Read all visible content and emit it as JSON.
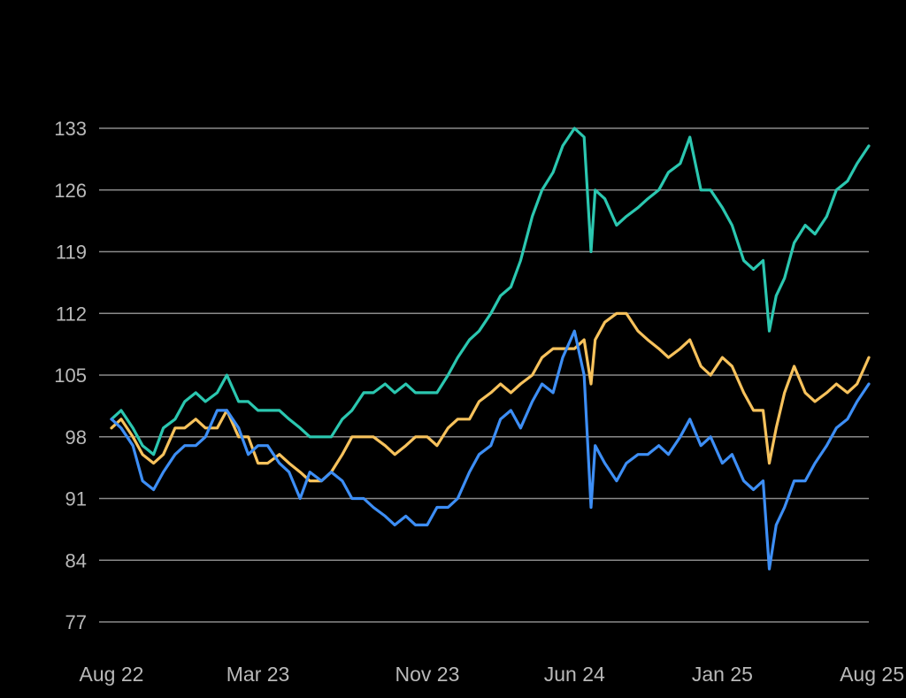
{
  "chart_data": {
    "type": "line",
    "title": "",
    "xlabel": "",
    "ylabel": "",
    "x_range": [
      "2022-08",
      "2025-08"
    ],
    "x_ticks": [
      {
        "label": "Aug 22",
        "date": "2022-08"
      },
      {
        "label": "Mar 23",
        "date": "2023-03"
      },
      {
        "label": "Nov 23",
        "date": "2023-11"
      },
      {
        "label": "Jun 24",
        "date": "2024-06"
      },
      {
        "label": "Jan 25",
        "date": "2025-01"
      },
      {
        "label": "Aug 25",
        "date": "2025-08"
      }
    ],
    "y_ticks": [
      77,
      84,
      91,
      98,
      105,
      112,
      119,
      126,
      133
    ],
    "ylim": [
      77,
      133
    ],
    "grid": "horizontal",
    "legend": "none",
    "series": [
      {
        "color": "#2bc7b0",
        "points": [
          [
            "2022-08",
            100
          ],
          [
            "2022-08-15",
            101
          ],
          [
            "2022-09",
            99
          ],
          [
            "2022-09-15",
            97
          ],
          [
            "2022-10",
            96
          ],
          [
            "2022-10-15",
            99
          ],
          [
            "2022-11",
            100
          ],
          [
            "2022-11-15",
            102
          ],
          [
            "2022-12",
            103
          ],
          [
            "2022-12-15",
            102
          ],
          [
            "2023-01",
            103
          ],
          [
            "2023-01-15",
            105
          ],
          [
            "2023-02",
            102
          ],
          [
            "2023-02-15",
            102
          ],
          [
            "2023-03",
            101
          ],
          [
            "2023-03-15",
            101
          ],
          [
            "2023-04",
            101
          ],
          [
            "2023-04-15",
            100
          ],
          [
            "2023-05",
            99
          ],
          [
            "2023-05-15",
            98
          ],
          [
            "2023-06",
            98
          ],
          [
            "2023-06-15",
            98
          ],
          [
            "2023-07",
            100
          ],
          [
            "2023-07-15",
            101
          ],
          [
            "2023-08",
            103
          ],
          [
            "2023-08-15",
            103
          ],
          [
            "2023-09",
            104
          ],
          [
            "2023-09-15",
            103
          ],
          [
            "2023-10",
            104
          ],
          [
            "2023-10-15",
            103
          ],
          [
            "2023-11",
            103
          ],
          [
            "2023-11-15",
            103
          ],
          [
            "2023-12",
            105
          ],
          [
            "2023-12-15",
            107
          ],
          [
            "2024-01",
            109
          ],
          [
            "2024-01-15",
            110
          ],
          [
            "2024-02",
            112
          ],
          [
            "2024-02-15",
            114
          ],
          [
            "2024-03",
            115
          ],
          [
            "2024-03-15",
            118
          ],
          [
            "2024-04",
            123
          ],
          [
            "2024-04-15",
            126
          ],
          [
            "2024-05",
            128
          ],
          [
            "2024-05-15",
            131
          ],
          [
            "2024-06",
            133
          ],
          [
            "2024-06-15",
            132
          ],
          [
            "2024-06-25",
            119
          ],
          [
            "2024-07",
            126
          ],
          [
            "2024-07-15",
            125
          ],
          [
            "2024-08",
            122
          ],
          [
            "2024-08-15",
            123
          ],
          [
            "2024-09",
            124
          ],
          [
            "2024-09-15",
            125
          ],
          [
            "2024-10",
            126
          ],
          [
            "2024-10-15",
            128
          ],
          [
            "2024-11",
            129
          ],
          [
            "2024-11-15",
            132
          ],
          [
            "2024-12",
            126
          ],
          [
            "2024-12-15",
            126
          ],
          [
            "2025-01",
            124
          ],
          [
            "2025-01-15",
            122
          ],
          [
            "2025-02",
            118
          ],
          [
            "2025-02-15",
            117
          ],
          [
            "2025-03",
            118
          ],
          [
            "2025-03-10",
            110
          ],
          [
            "2025-03-20",
            114
          ],
          [
            "2025-04",
            116
          ],
          [
            "2025-04-15",
            120
          ],
          [
            "2025-05",
            122
          ],
          [
            "2025-05-15",
            121
          ],
          [
            "2025-06",
            123
          ],
          [
            "2025-06-15",
            126
          ],
          [
            "2025-07",
            127
          ],
          [
            "2025-07-15",
            129
          ],
          [
            "2025-08",
            131
          ]
        ]
      },
      {
        "color": "#f7c25c",
        "points": [
          [
            "2022-08",
            99
          ],
          [
            "2022-08-15",
            100
          ],
          [
            "2022-09",
            98
          ],
          [
            "2022-09-15",
            96
          ],
          [
            "2022-10",
            95
          ],
          [
            "2022-10-15",
            96
          ],
          [
            "2022-11",
            99
          ],
          [
            "2022-11-15",
            99
          ],
          [
            "2022-12",
            100
          ],
          [
            "2022-12-15",
            99
          ],
          [
            "2023-01",
            99
          ],
          [
            "2023-01-15",
            101
          ],
          [
            "2023-02",
            98
          ],
          [
            "2023-02-15",
            98
          ],
          [
            "2023-03",
            95
          ],
          [
            "2023-03-15",
            95
          ],
          [
            "2023-04",
            96
          ],
          [
            "2023-04-15",
            95
          ],
          [
            "2023-05",
            94
          ],
          [
            "2023-05-15",
            93
          ],
          [
            "2023-06",
            93
          ],
          [
            "2023-06-15",
            94
          ],
          [
            "2023-07",
            96
          ],
          [
            "2023-07-15",
            98
          ],
          [
            "2023-08",
            98
          ],
          [
            "2023-08-15",
            98
          ],
          [
            "2023-09",
            97
          ],
          [
            "2023-09-15",
            96
          ],
          [
            "2023-10",
            97
          ],
          [
            "2023-10-15",
            98
          ],
          [
            "2023-11",
            98
          ],
          [
            "2023-11-15",
            97
          ],
          [
            "2023-12",
            99
          ],
          [
            "2023-12-15",
            100
          ],
          [
            "2024-01",
            100
          ],
          [
            "2024-01-15",
            102
          ],
          [
            "2024-02",
            103
          ],
          [
            "2024-02-15",
            104
          ],
          [
            "2024-03",
            103
          ],
          [
            "2024-03-15",
            104
          ],
          [
            "2024-04",
            105
          ],
          [
            "2024-04-15",
            107
          ],
          [
            "2024-05",
            108
          ],
          [
            "2024-05-15",
            108
          ],
          [
            "2024-06",
            108
          ],
          [
            "2024-06-15",
            109
          ],
          [
            "2024-06-25",
            104
          ],
          [
            "2024-07",
            109
          ],
          [
            "2024-07-15",
            111
          ],
          [
            "2024-08",
            112
          ],
          [
            "2024-08-15",
            112
          ],
          [
            "2024-09",
            110
          ],
          [
            "2024-09-15",
            109
          ],
          [
            "2024-10",
            108
          ],
          [
            "2024-10-15",
            107
          ],
          [
            "2024-11",
            108
          ],
          [
            "2024-11-15",
            109
          ],
          [
            "2024-12",
            106
          ],
          [
            "2024-12-15",
            105
          ],
          [
            "2025-01",
            107
          ],
          [
            "2025-01-15",
            106
          ],
          [
            "2025-02",
            103
          ],
          [
            "2025-02-15",
            101
          ],
          [
            "2025-03",
            101
          ],
          [
            "2025-03-10",
            95
          ],
          [
            "2025-03-20",
            99
          ],
          [
            "2025-04",
            103
          ],
          [
            "2025-04-15",
            106
          ],
          [
            "2025-05",
            103
          ],
          [
            "2025-05-15",
            102
          ],
          [
            "2025-06",
            103
          ],
          [
            "2025-06-15",
            104
          ],
          [
            "2025-07",
            103
          ],
          [
            "2025-07-15",
            104
          ],
          [
            "2025-08",
            107
          ]
        ]
      },
      {
        "color": "#3d8ef5",
        "points": [
          [
            "2022-08",
            100
          ],
          [
            "2022-08-15",
            99
          ],
          [
            "2022-09",
            97
          ],
          [
            "2022-09-15",
            93
          ],
          [
            "2022-10",
            92
          ],
          [
            "2022-10-15",
            94
          ],
          [
            "2022-11",
            96
          ],
          [
            "2022-11-15",
            97
          ],
          [
            "2022-12",
            97
          ],
          [
            "2022-12-15",
            98
          ],
          [
            "2023-01",
            101
          ],
          [
            "2023-01-15",
            101
          ],
          [
            "2023-02",
            99
          ],
          [
            "2023-02-15",
            96
          ],
          [
            "2023-03",
            97
          ],
          [
            "2023-03-15",
            97
          ],
          [
            "2023-04",
            95
          ],
          [
            "2023-04-15",
            94
          ],
          [
            "2023-05",
            91
          ],
          [
            "2023-05-15",
            94
          ],
          [
            "2023-06",
            93
          ],
          [
            "2023-06-15",
            94
          ],
          [
            "2023-07",
            93
          ],
          [
            "2023-07-15",
            91
          ],
          [
            "2023-08",
            91
          ],
          [
            "2023-08-15",
            90
          ],
          [
            "2023-09",
            89
          ],
          [
            "2023-09-15",
            88
          ],
          [
            "2023-10",
            89
          ],
          [
            "2023-10-15",
            88
          ],
          [
            "2023-11",
            88
          ],
          [
            "2023-11-15",
            90
          ],
          [
            "2023-12",
            90
          ],
          [
            "2023-12-15",
            91
          ],
          [
            "2024-01",
            94
          ],
          [
            "2024-01-15",
            96
          ],
          [
            "2024-02",
            97
          ],
          [
            "2024-02-15",
            100
          ],
          [
            "2024-03",
            101
          ],
          [
            "2024-03-15",
            99
          ],
          [
            "2024-04",
            102
          ],
          [
            "2024-04-15",
            104
          ],
          [
            "2024-05",
            103
          ],
          [
            "2024-05-15",
            107
          ],
          [
            "2024-06",
            110
          ],
          [
            "2024-06-15",
            105
          ],
          [
            "2024-06-25",
            90
          ],
          [
            "2024-07",
            97
          ],
          [
            "2024-07-15",
            95
          ],
          [
            "2024-08",
            93
          ],
          [
            "2024-08-15",
            95
          ],
          [
            "2024-09",
            96
          ],
          [
            "2024-09-15",
            96
          ],
          [
            "2024-10",
            97
          ],
          [
            "2024-10-15",
            96
          ],
          [
            "2024-11",
            98
          ],
          [
            "2024-11-15",
            100
          ],
          [
            "2024-12",
            97
          ],
          [
            "2024-12-15",
            98
          ],
          [
            "2025-01",
            95
          ],
          [
            "2025-01-15",
            96
          ],
          [
            "2025-02",
            93
          ],
          [
            "2025-02-15",
            92
          ],
          [
            "2025-03",
            93
          ],
          [
            "2025-03-10",
            83
          ],
          [
            "2025-03-20",
            88
          ],
          [
            "2025-04",
            90
          ],
          [
            "2025-04-15",
            93
          ],
          [
            "2025-05",
            93
          ],
          [
            "2025-05-15",
            95
          ],
          [
            "2025-06",
            97
          ],
          [
            "2025-06-15",
            99
          ],
          [
            "2025-07",
            100
          ],
          [
            "2025-07-15",
            102
          ],
          [
            "2025-08",
            104
          ]
        ]
      }
    ]
  }
}
